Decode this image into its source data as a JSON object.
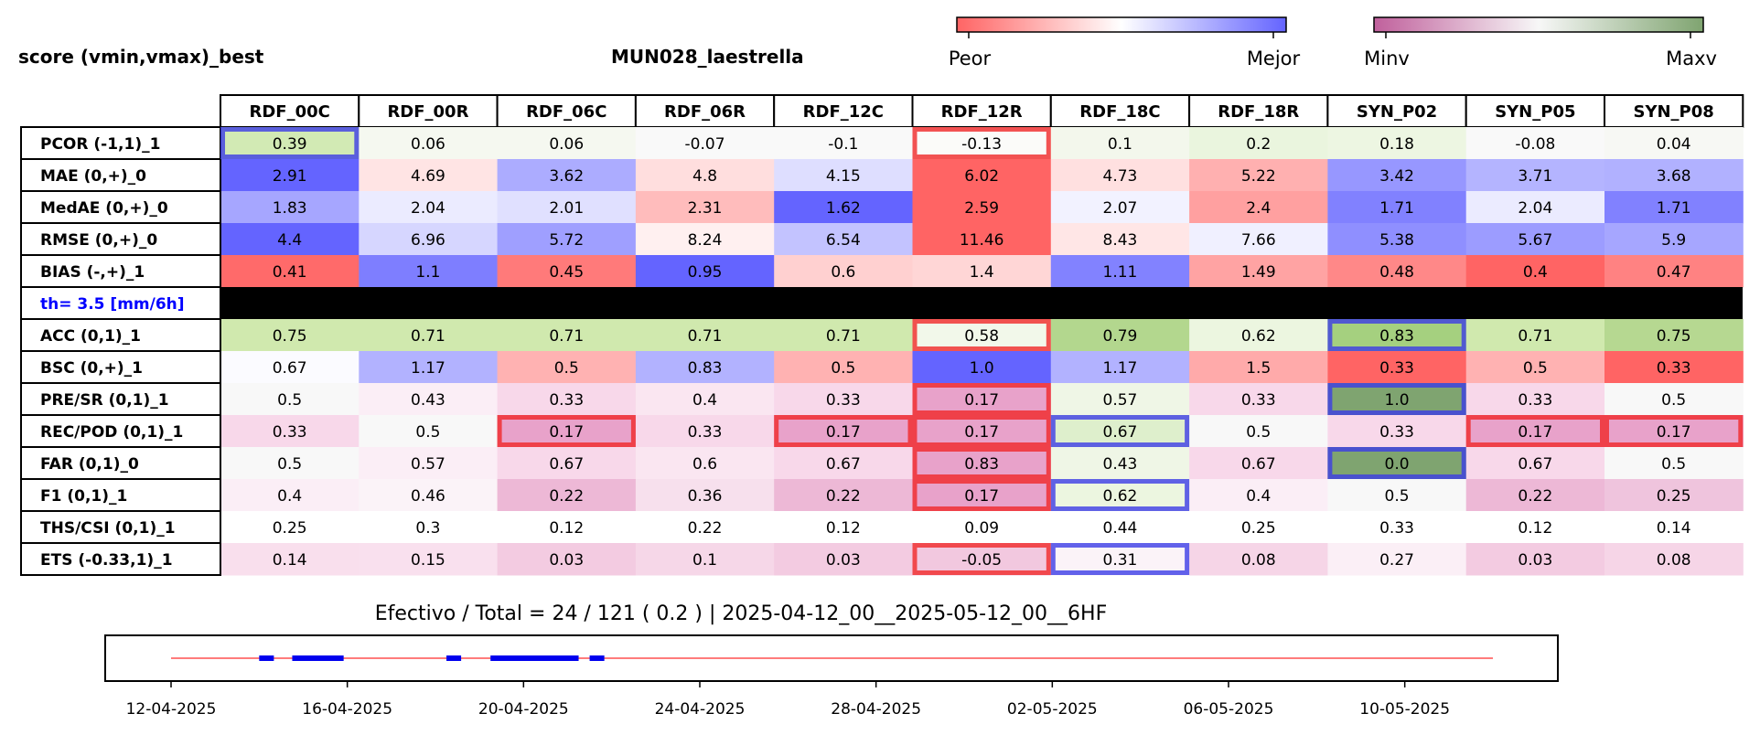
{
  "title_left": "score (vmin,vmax)_best",
  "station": "MUN028_laestrella",
  "colorbars": {
    "score": {
      "low_label": "Peor",
      "high_label": "Mejor",
      "low_color": "#ff6464",
      "mid_color": "#ffffff",
      "high_color": "#6464ff"
    },
    "value": {
      "low_label": "Minv",
      "high_label": "Maxv",
      "low_color": "#c0609c",
      "mid_color": "#f7f7f7",
      "high_color": "#7fa470"
    }
  },
  "columns": [
    "RDF_00C",
    "RDF_00R",
    "RDF_06C",
    "RDF_06R",
    "RDF_12C",
    "RDF_12R",
    "RDF_18C",
    "RDF_18R",
    "SYN_P02",
    "SYN_P05",
    "SYN_P08"
  ],
  "threshold_label": "th= 3.5 [mm/6h]",
  "rows": [
    {
      "label": "PCOR (-1,1)_1",
      "cells": [
        {
          "v": "0.39",
          "bg": "#d2eab4",
          "box": "blue"
        },
        {
          "v": "0.06",
          "bg": "#f5f8f0"
        },
        {
          "v": "0.06",
          "bg": "#f5f8f0"
        },
        {
          "v": "-0.07",
          "bg": "#f9f9f9"
        },
        {
          "v": "-0.1",
          "bg": "#f9f9f9"
        },
        {
          "v": "-0.13",
          "bg": "#fbfbf9",
          "box": "red"
        },
        {
          "v": "0.1",
          "bg": "#f3f7ec"
        },
        {
          "v": "0.2",
          "bg": "#eaf5de"
        },
        {
          "v": "0.18",
          "bg": "#edf6e2"
        },
        {
          "v": "-0.08",
          "bg": "#f9f9f9"
        },
        {
          "v": "0.04",
          "bg": "#f7f8f4"
        }
      ]
    },
    {
      "label": "MAE (0,+)_0",
      "cells": [
        {
          "v": "2.91",
          "bg": "#6464ff"
        },
        {
          "v": "4.69",
          "bg": "#ffe4e4"
        },
        {
          "v": "3.62",
          "bg": "#acacff"
        },
        {
          "v": "4.8",
          "bg": "#ffdede"
        },
        {
          "v": "4.15",
          "bg": "#dedeff"
        },
        {
          "v": "6.02",
          "bg": "#ff6464"
        },
        {
          "v": "4.73",
          "bg": "#ffe0e0"
        },
        {
          "v": "5.22",
          "bg": "#ffb0b0"
        },
        {
          "v": "3.42",
          "bg": "#9797ff"
        },
        {
          "v": "3.71",
          "bg": "#b4b4ff"
        },
        {
          "v": "3.68",
          "bg": "#b1b1ff"
        }
      ]
    },
    {
      "label": "MedAE (0,+)_0",
      "cells": [
        {
          "v": "1.83",
          "bg": "#a6a6ff"
        },
        {
          "v": "2.04",
          "bg": "#ebebff"
        },
        {
          "v": "2.01",
          "bg": "#e0e0ff"
        },
        {
          "v": "2.31",
          "bg": "#ffbcbc"
        },
        {
          "v": "1.62",
          "bg": "#6464ff"
        },
        {
          "v": "2.59",
          "bg": "#ff6464"
        },
        {
          "v": "2.07",
          "bg": "#f2f2ff"
        },
        {
          "v": "2.4",
          "bg": "#ffa0a0"
        },
        {
          "v": "1.71",
          "bg": "#8181ff"
        },
        {
          "v": "2.04",
          "bg": "#ebebff"
        },
        {
          "v": "1.71",
          "bg": "#8181ff"
        }
      ]
    },
    {
      "label": "RMSE (0,+)_0",
      "cells": [
        {
          "v": "4.4",
          "bg": "#6464ff"
        },
        {
          "v": "6.96",
          "bg": "#d6d6ff"
        },
        {
          "v": "5.72",
          "bg": "#9f9fff"
        },
        {
          "v": "8.24",
          "bg": "#fff0f0"
        },
        {
          "v": "6.54",
          "bg": "#c3c3ff"
        },
        {
          "v": "11.46",
          "bg": "#ff6464"
        },
        {
          "v": "8.43",
          "bg": "#ffe6e6"
        },
        {
          "v": "7.66",
          "bg": "#f0f0ff"
        },
        {
          "v": "5.38",
          "bg": "#8f8fff"
        },
        {
          "v": "5.67",
          "bg": "#9c9cff"
        },
        {
          "v": "5.9",
          "bg": "#a6a6ff"
        }
      ]
    },
    {
      "label": "BIAS (-,+)_1",
      "cells": [
        {
          "v": "0.41",
          "bg": "#ff6a6a"
        },
        {
          "v": "1.1",
          "bg": "#7e7eff"
        },
        {
          "v": "0.45",
          "bg": "#ff7a7a"
        },
        {
          "v": "0.95",
          "bg": "#6464ff"
        },
        {
          "v": "0.6",
          "bg": "#ffd0d0"
        },
        {
          "v": "1.4",
          "bg": "#ffd6d6"
        },
        {
          "v": "1.11",
          "bg": "#8282ff"
        },
        {
          "v": "1.49",
          "bg": "#ffa3a3"
        },
        {
          "v": "0.48",
          "bg": "#ff8888"
        },
        {
          "v": "0.4",
          "bg": "#ff6464"
        },
        {
          "v": "0.47",
          "bg": "#ff8282"
        }
      ]
    },
    {
      "label": "ACC (0,1)_1",
      "cells": [
        {
          "v": "0.75",
          "bg": "#d0e9ae"
        },
        {
          "v": "0.71",
          "bg": "#d0e9ae"
        },
        {
          "v": "0.71",
          "bg": "#d0e9ae"
        },
        {
          "v": "0.71",
          "bg": "#d0e9ae"
        },
        {
          "v": "0.71",
          "bg": "#d0e9ae"
        },
        {
          "v": "0.58",
          "bg": "#f2f8ea",
          "box": "red"
        },
        {
          "v": "0.79",
          "bg": "#b3d78e"
        },
        {
          "v": "0.62",
          "bg": "#ecf6e0"
        },
        {
          "v": "0.83",
          "bg": "#a5d07f",
          "box": "blue"
        },
        {
          "v": "0.71",
          "bg": "#d0e9ae"
        },
        {
          "v": "0.75",
          "bg": "#b6d891"
        }
      ]
    },
    {
      "label": "BSC (0,+)_1",
      "cells": [
        {
          "v": "0.67",
          "bg": "#fbfbff"
        },
        {
          "v": "1.17",
          "bg": "#b2b2ff"
        },
        {
          "v": "0.5",
          "bg": "#ffb2b2"
        },
        {
          "v": "0.83",
          "bg": "#b2b2ff"
        },
        {
          "v": "0.5",
          "bg": "#ffb2b2"
        },
        {
          "v": "1.0",
          "bg": "#6464ff"
        },
        {
          "v": "1.17",
          "bg": "#b2b2ff"
        },
        {
          "v": "1.5",
          "bg": "#ffaaaa"
        },
        {
          "v": "0.33",
          "bg": "#ff6464"
        },
        {
          "v": "0.5",
          "bg": "#ffb2b2"
        },
        {
          "v": "0.33",
          "bg": "#ff6464"
        }
      ]
    },
    {
      "label": "PRE/SR (0,1)_1",
      "cells": [
        {
          "v": "0.5",
          "bg": "#f8f8f8"
        },
        {
          "v": "0.43",
          "bg": "#fbeef6"
        },
        {
          "v": "0.33",
          "bg": "#f8d8ea"
        },
        {
          "v": "0.4",
          "bg": "#fae6f1"
        },
        {
          "v": "0.33",
          "bg": "#f8d8ea"
        },
        {
          "v": "0.17",
          "bg": "#e8a2ca",
          "box": "red"
        },
        {
          "v": "0.57",
          "bg": "#eff6e6"
        },
        {
          "v": "0.33",
          "bg": "#f8d8ea"
        },
        {
          "v": "1.0",
          "bg": "#7fa470",
          "box": "blue"
        },
        {
          "v": "0.33",
          "bg": "#f8d8ea"
        },
        {
          "v": "0.5",
          "bg": "#f8f8f8"
        }
      ]
    },
    {
      "label": "REC/POD (0,1)_1",
      "cells": [
        {
          "v": "0.33",
          "bg": "#f8d8ea"
        },
        {
          "v": "0.5",
          "bg": "#f8f8f8"
        },
        {
          "v": "0.17",
          "bg": "#e8a2ca",
          "box": "red"
        },
        {
          "v": "0.33",
          "bg": "#f8d8ea"
        },
        {
          "v": "0.17",
          "bg": "#e8a2ca",
          "box": "red"
        },
        {
          "v": "0.17",
          "bg": "#e8a2ca",
          "box": "red"
        },
        {
          "v": "0.67",
          "bg": "#deefcc",
          "box": "blue"
        },
        {
          "v": "0.5",
          "bg": "#f8f8f8"
        },
        {
          "v": "0.33",
          "bg": "#f8d8ea"
        },
        {
          "v": "0.17",
          "bg": "#e8a2ca",
          "box": "red"
        },
        {
          "v": "0.17",
          "bg": "#e8a2ca",
          "box": "red"
        }
      ]
    },
    {
      "label": "FAR (0,1)_0",
      "cells": [
        {
          "v": "0.5",
          "bg": "#f8f8f8"
        },
        {
          "v": "0.57",
          "bg": "#fbeef6"
        },
        {
          "v": "0.67",
          "bg": "#f8d8ea"
        },
        {
          "v": "0.6",
          "bg": "#fae6f1"
        },
        {
          "v": "0.67",
          "bg": "#f8d8ea"
        },
        {
          "v": "0.83",
          "bg": "#e8a2ca",
          "box": "red"
        },
        {
          "v": "0.43",
          "bg": "#eff6e6"
        },
        {
          "v": "0.67",
          "bg": "#f8d8ea"
        },
        {
          "v": "0.0",
          "bg": "#7fa470",
          "box": "blue"
        },
        {
          "v": "0.67",
          "bg": "#f8d8ea"
        },
        {
          "v": "0.5",
          "bg": "#f8f8f8"
        }
      ]
    },
    {
      "label": "F1 (0,1)_1",
      "cells": [
        {
          "v": "0.4",
          "bg": "#fbeef6"
        },
        {
          "v": "0.46",
          "bg": "#fbf3f8"
        },
        {
          "v": "0.22",
          "bg": "#edb8d6"
        },
        {
          "v": "0.36",
          "bg": "#f7e0ed"
        },
        {
          "v": "0.22",
          "bg": "#edb8d6"
        },
        {
          "v": "0.17",
          "bg": "#e8a2ca",
          "box": "red"
        },
        {
          "v": "0.62",
          "bg": "#ecf6e0",
          "box": "blue"
        },
        {
          "v": "0.4",
          "bg": "#fbeef6"
        },
        {
          "v": "0.5",
          "bg": "#f8f8f8"
        },
        {
          "v": "0.22",
          "bg": "#edb8d6"
        },
        {
          "v": "0.25",
          "bg": "#efc4dd"
        }
      ]
    },
    {
      "label": "THS/CSI (0,1)_1",
      "cells": [
        {
          "v": "0.25",
          "bg": "#ffffff"
        },
        {
          "v": "0.3",
          "bg": "#ffffff"
        },
        {
          "v": "0.12",
          "bg": "#ffffff"
        },
        {
          "v": "0.22",
          "bg": "#ffffff"
        },
        {
          "v": "0.12",
          "bg": "#ffffff"
        },
        {
          "v": "0.09",
          "bg": "#ffffff"
        },
        {
          "v": "0.44",
          "bg": "#ffffff"
        },
        {
          "v": "0.25",
          "bg": "#ffffff"
        },
        {
          "v": "0.33",
          "bg": "#ffffff"
        },
        {
          "v": "0.12",
          "bg": "#ffffff"
        },
        {
          "v": "0.14",
          "bg": "#ffffff"
        }
      ]
    },
    {
      "label": "ETS (-0.33,1)_1",
      "cells": [
        {
          "v": "0.14",
          "bg": "#f9dfed"
        },
        {
          "v": "0.15",
          "bg": "#f9e0ee"
        },
        {
          "v": "0.03",
          "bg": "#f3cbe1"
        },
        {
          "v": "0.1",
          "bg": "#f6d7e8"
        },
        {
          "v": "0.03",
          "bg": "#f3cbe1"
        },
        {
          "v": "-0.05",
          "bg": "#f2c8df",
          "box": "red"
        },
        {
          "v": "0.31",
          "bg": "#fbf3f8",
          "box": "blue"
        },
        {
          "v": "0.08",
          "bg": "#f6d5e7"
        },
        {
          "v": "0.27",
          "bg": "#fbeff6"
        },
        {
          "v": "0.03",
          "bg": "#f3cbe1"
        },
        {
          "v": "0.08",
          "bg": "#f6d5e7"
        }
      ]
    }
  ],
  "summary_text": "Efectivo / Total  =  24 / 121 ( 0.2 ) | 2025-04-12_00__2025-05-12_00__6HF",
  "chart_data": {
    "type": "timeline",
    "x_ticks": [
      "12-04-2025",
      "16-04-2025",
      "20-04-2025",
      "24-04-2025",
      "28-04-2025",
      "02-05-2025",
      "06-05-2025",
      "10-05-2025"
    ],
    "x_range": [
      "2025-04-12",
      "2025-05-12"
    ],
    "baseline_color": "#ff5050",
    "effective_color": "#0000ee",
    "effective_intervals": [
      [
        "2025-04-14 00:00",
        "2025-04-14 08:00"
      ],
      [
        "2025-04-14 18:00",
        "2025-04-15 22:00"
      ],
      [
        "2025-04-18 06:00",
        "2025-04-18 14:00"
      ],
      [
        "2025-04-19 06:00",
        "2025-04-21 06:00"
      ],
      [
        "2025-04-21 12:00",
        "2025-04-21 20:00"
      ]
    ]
  }
}
